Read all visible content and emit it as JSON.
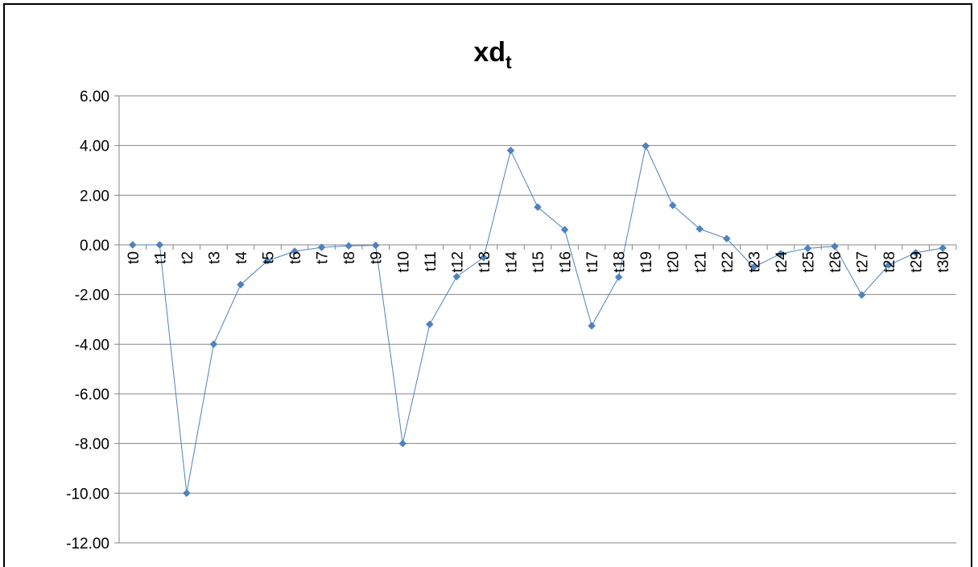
{
  "chart_data": {
    "type": "line",
    "title": "xd",
    "title_subscript": "t",
    "xlabel": "",
    "ylabel": "",
    "ylim": [
      -12,
      6
    ],
    "y_ticks": [
      6,
      4,
      2,
      0,
      -2,
      -4,
      -6,
      -8,
      -10,
      -12
    ],
    "y_tick_labels": [
      "6.00",
      "4.00",
      "2.00",
      "0.00",
      "-2.00",
      "-4.00",
      "-6.00",
      "-8.00",
      "-10.00",
      "-12.00"
    ],
    "grid": true,
    "legend": "none",
    "categories": [
      "t0",
      "t1",
      "t2",
      "t3",
      "t4",
      "t5",
      "t6",
      "t7",
      "t8",
      "t9",
      "t10",
      "t11",
      "t12",
      "t13",
      "t14",
      "t15",
      "t16",
      "t17",
      "t18",
      "t19",
      "t20",
      "t21",
      "t22",
      "t23",
      "t24",
      "t25",
      "t26",
      "t27",
      "t28",
      "t29",
      "t30"
    ],
    "series": [
      {
        "values": [
          0,
          0,
          -10,
          -4,
          -1.6,
          -0.64,
          -0.26,
          -0.1,
          -0.04,
          -0.02,
          -8,
          -3.2,
          -1.28,
          -0.51,
          3.8,
          1.52,
          0.61,
          -3.26,
          -1.3,
          3.98,
          1.59,
          0.64,
          0.25,
          -0.9,
          -0.36,
          -0.14,
          -0.06,
          -2.02,
          -0.81,
          -0.32,
          -0.13
        ],
        "color": "#4f81bd"
      }
    ]
  }
}
